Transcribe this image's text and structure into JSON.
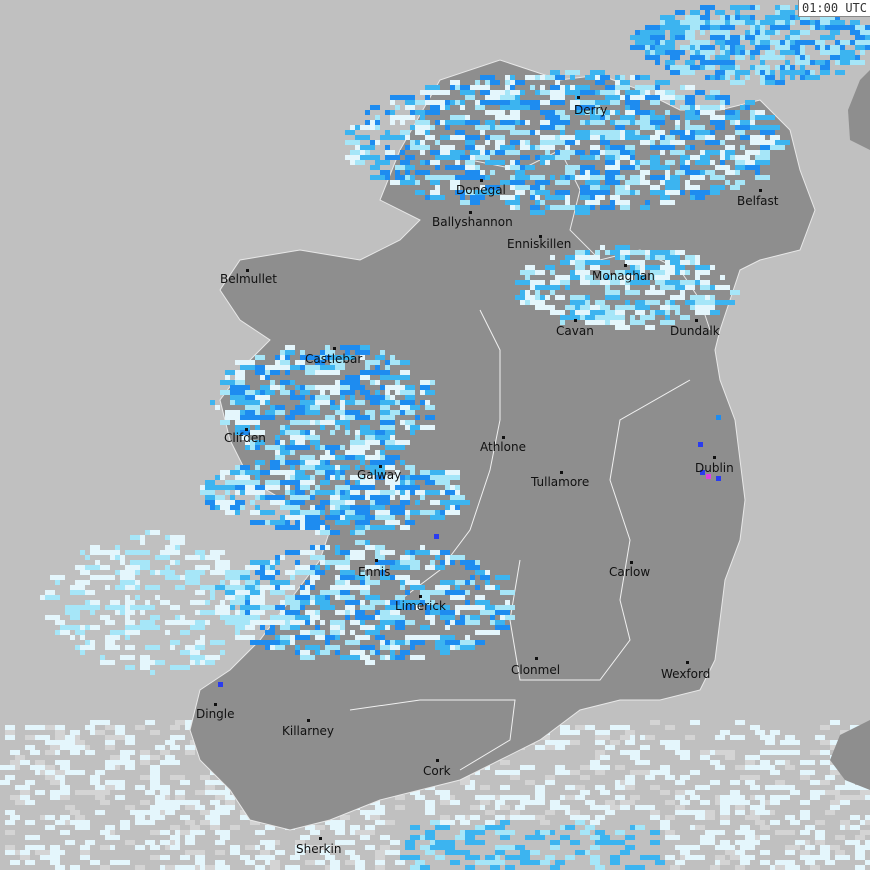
{
  "timestamp": "01:00 UTC",
  "colors": {
    "sea": "#c0c0c0",
    "land": "#8e8e8e",
    "rain_trace": "#e4f6fc",
    "rain_light": "#a6e6f8",
    "rain_moderate": "#3cb4f0",
    "rain_heavy": "#1e8cf0",
    "rain_intense": "#2a3cf0",
    "rain_extreme": "#e040e0"
  },
  "cities": [
    {
      "name": "Derry"
    },
    {
      "name": "Belfast"
    },
    {
      "name": "Donegal"
    },
    {
      "name": "Ballyshannon"
    },
    {
      "name": "Enniskillen"
    },
    {
      "name": "Monaghan"
    },
    {
      "name": "Belmullet"
    },
    {
      "name": "Cavan"
    },
    {
      "name": "Dundalk"
    },
    {
      "name": "Castlebar"
    },
    {
      "name": "Athlone"
    },
    {
      "name": "Clifden"
    },
    {
      "name": "Dublin"
    },
    {
      "name": "Galway"
    },
    {
      "name": "Tullamore"
    },
    {
      "name": "Ennis"
    },
    {
      "name": "Carlow"
    },
    {
      "name": "Limerick"
    },
    {
      "name": "Clonmel"
    },
    {
      "name": "Wexford"
    },
    {
      "name": "Dingle"
    },
    {
      "name": "Killarney"
    },
    {
      "name": "Cork"
    },
    {
      "name": "Sherkin"
    }
  ]
}
